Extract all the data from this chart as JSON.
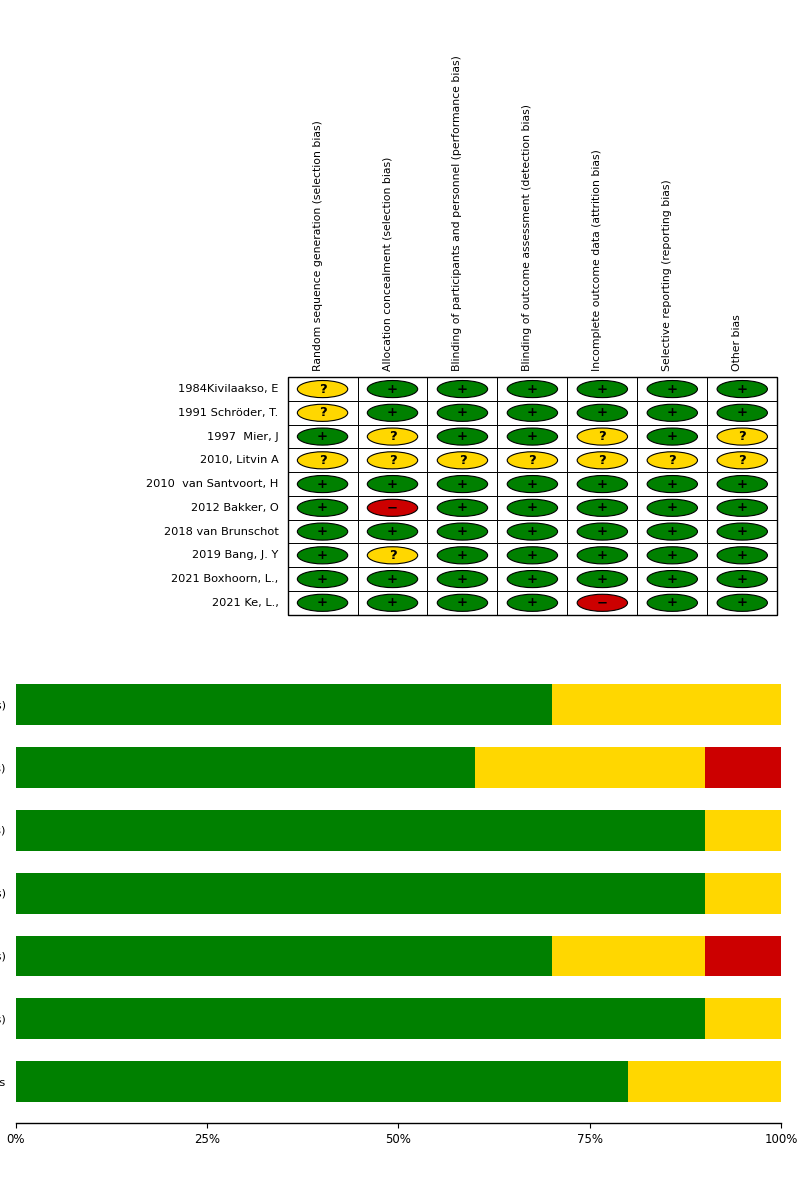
{
  "studies": [
    "1984Kivilaakso, E",
    "1991 Schröder, T.",
    "1997  Mier, J",
    "2010, Litvin A",
    "2010  van Santvoort, H",
    "2012 Bakker, O",
    "2018 van Brunschot",
    "2019 Bang, J. Y",
    "2021 Boxhoorn, L.,",
    "2021 Ke, L.,"
  ],
  "col_headers": [
    "Random sequence generation (selection bias)",
    "Allocation concealment (selection bias)",
    "Blinding of participants and personnel (performance bias)",
    "Blinding of outcome assessment (detection bias)",
    "Incomplete outcome data (attrition bias)",
    "Selective reporting (reporting bias)",
    "Other bias"
  ],
  "grid": [
    [
      "Y",
      "G",
      "G",
      "G",
      "G",
      "G",
      "G"
    ],
    [
      "Y",
      "G",
      "G",
      "G",
      "G",
      "G",
      "G"
    ],
    [
      "G",
      "Y",
      "G",
      "G",
      "Y",
      "G",
      "Y"
    ],
    [
      "Y",
      "Y",
      "Y",
      "Y",
      "Y",
      "Y",
      "Y"
    ],
    [
      "G",
      "G",
      "G",
      "G",
      "G",
      "G",
      "G"
    ],
    [
      "G",
      "R",
      "G",
      "G",
      "G",
      "G",
      "G"
    ],
    [
      "G",
      "G",
      "G",
      "G",
      "G",
      "G",
      "G"
    ],
    [
      "G",
      "Y",
      "G",
      "G",
      "G",
      "G",
      "G"
    ],
    [
      "G",
      "G",
      "G",
      "G",
      "G",
      "G",
      "G"
    ],
    [
      "G",
      "G",
      "G",
      "G",
      "R",
      "G",
      "G"
    ]
  ],
  "bar_labels": [
    "Random sequence generation (selection bias)",
    "Allocation concealment (selection bias)",
    "Blinding of participants and personnel (performance bias)",
    "Blinding of outcome assessment (detection bias)",
    "Incomplete outcome data (attrition bias)",
    "Selective reporting (reporting bias)",
    "Other bias"
  ],
  "colors": {
    "green": "#008000",
    "yellow": "#FFD700",
    "red": "#CC0000",
    "border": "#000000",
    "background": "#ffffff"
  },
  "figsize": [
    7.97,
    11.82
  ],
  "dpi": 100
}
